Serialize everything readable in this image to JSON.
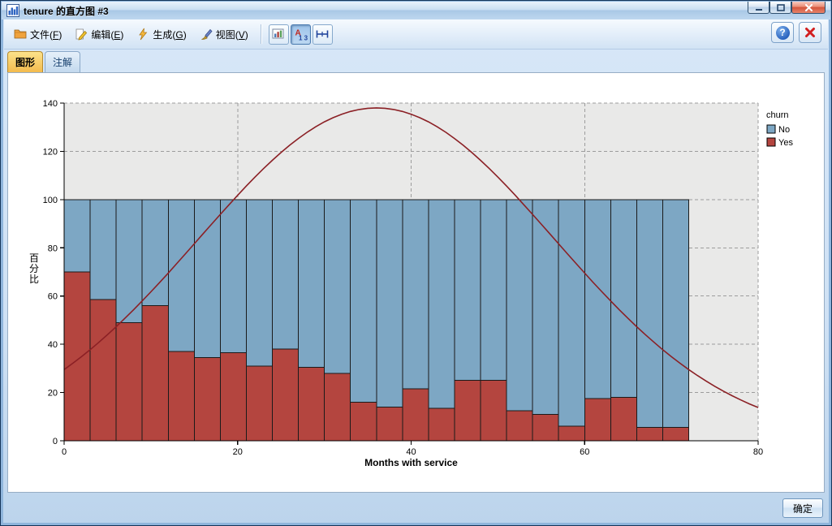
{
  "window": {
    "title": "tenure 的直方图 #3"
  },
  "menu": {
    "items": [
      {
        "label": "文件(F)",
        "icon": "file-icon"
      },
      {
        "label": "编辑(E)",
        "icon": "edit-icon"
      },
      {
        "label": "生成(G)",
        "icon": "generate-icon"
      },
      {
        "label": "视图(V)",
        "icon": "view-icon"
      }
    ]
  },
  "toolbar": {
    "buttons": [
      {
        "name": "export-graph"
      },
      {
        "name": "field-chooser",
        "pressed": true,
        "glyph_top": "A",
        "glyph_bottom": "1 3"
      },
      {
        "name": "axis-interval"
      }
    ],
    "help_glyph": "?"
  },
  "tabs": [
    {
      "label": "图形",
      "selected": true
    },
    {
      "label": "注解",
      "selected": false
    }
  ],
  "chart_data": {
    "type": "bar",
    "subtype": "stacked-percentage-histogram-with-normal-curve",
    "title": "",
    "xlabel": "Months with service",
    "ylabel": "百分比",
    "xlim": [
      0,
      80
    ],
    "ylim": [
      0,
      140
    ],
    "x_ticks": [
      0,
      20,
      40,
      60,
      80
    ],
    "y_ticks": [
      0,
      20,
      40,
      60,
      80,
      100,
      120,
      140
    ],
    "grid": "dashed",
    "plot_bg": "#e9e9e8",
    "bin_width": 3,
    "bin_starts": [
      0,
      3,
      6,
      9,
      12,
      15,
      18,
      21,
      24,
      27,
      30,
      33,
      36,
      39,
      42,
      45,
      48,
      51,
      54,
      57,
      60,
      63,
      66,
      69
    ],
    "series": [
      {
        "name": "Yes",
        "color": "#b4453f",
        "values": [
          70,
          58.5,
          49,
          56,
          37,
          34.5,
          36.5,
          31,
          38,
          30.5,
          28,
          16,
          14,
          21.5,
          13.5,
          25,
          25,
          12.5,
          11,
          6,
          17.5,
          18,
          5.5,
          5.5
        ]
      },
      {
        "name": "No",
        "color": "#7da7c4",
        "values": [
          30,
          41.5,
          51,
          44,
          63,
          65.5,
          63.5,
          69,
          62,
          69.5,
          72,
          84,
          86,
          78.5,
          86.5,
          75,
          75,
          87.5,
          89,
          94,
          82.5,
          82,
          94.5,
          94.5
        ]
      }
    ],
    "legend": {
      "title": "churn",
      "entries": [
        {
          "label": "No",
          "color": "#7da7c4"
        },
        {
          "label": "Yes",
          "color": "#b4453f"
        }
      ]
    },
    "normal_curve": {
      "color": "#8b2025",
      "mean": 36,
      "sigma": 20.5,
      "peak": 138
    }
  },
  "footer": {
    "ok_label": "确定"
  }
}
